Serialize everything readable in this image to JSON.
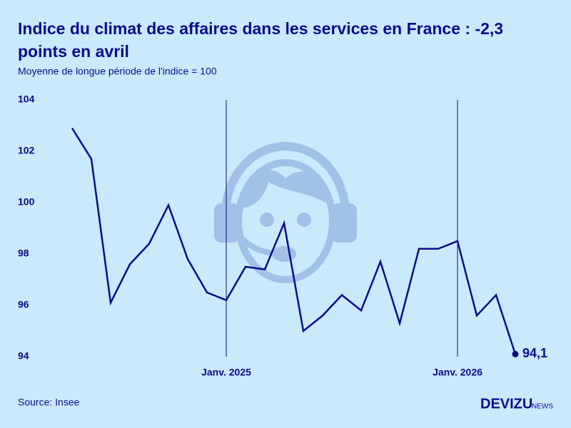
{
  "chart_data": {
    "type": "line",
    "title_lines": [
      "Indice du climat des affaires dans les services en France : -2,3",
      "points en avril"
    ],
    "subtitle": "Moyenne de longue période de l'indice = 100",
    "source": "Source: Insee",
    "brand": "DEVIZU",
    "brand_suffix": "NEWS",
    "categories": [
      null,
      null,
      null,
      null,
      null,
      null,
      null,
      null,
      "Janv. 2025",
      null,
      null,
      null,
      null,
      null,
      null,
      null,
      null,
      null,
      null,
      null,
      "Janv. 2026",
      null,
      null,
      null
    ],
    "values": [
      102.9,
      101.7,
      96.1,
      97.6,
      98.4,
      99.9,
      97.8,
      96.5,
      96.2,
      97.5,
      97.4,
      99.2,
      95.0,
      95.6,
      96.4,
      95.8,
      97.7,
      95.3,
      98.2,
      98.2,
      98.5,
      95.6,
      96.4,
      94.1
    ],
    "value_labels": [
      null,
      null,
      null,
      null,
      null,
      null,
      null,
      null,
      null,
      null,
      null,
      null,
      null,
      null,
      null,
      null,
      null,
      null,
      null,
      null,
      null,
      null,
      null,
      "94,1"
    ],
    "color": "#0b0c8c",
    "ylim": [
      94,
      104
    ],
    "yticks": [
      94,
      96,
      98,
      100,
      102,
      104
    ]
  }
}
